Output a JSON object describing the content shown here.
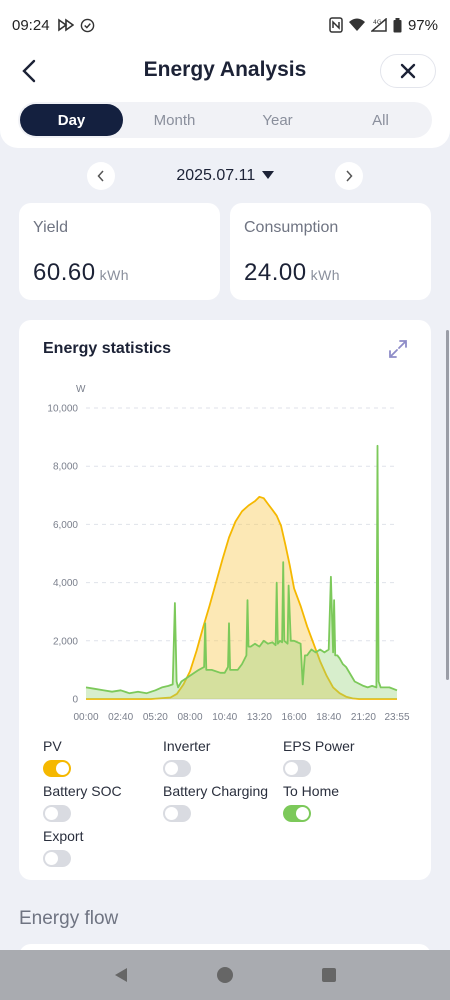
{
  "status_bar": {
    "time": "09:24",
    "battery": "97%",
    "net": "4G"
  },
  "header": {
    "title": "Energy Analysis"
  },
  "tabs": [
    {
      "label": "Day",
      "active": true
    },
    {
      "label": "Month",
      "active": false
    },
    {
      "label": "Year",
      "active": false
    },
    {
      "label": "All",
      "active": false
    }
  ],
  "date": {
    "value": "2025.07.11"
  },
  "yield": {
    "label": "Yield",
    "value": "60.60",
    "unit": "kWh"
  },
  "consumption": {
    "label": "Consumption",
    "value": "24.00",
    "unit": "kWh"
  },
  "chart_card": {
    "title": "Energy statistics"
  },
  "legend": [
    {
      "label": "PV",
      "on": true,
      "color": "#f5b800"
    },
    {
      "label": "Inverter",
      "on": false
    },
    {
      "label": "EPS Power",
      "on": false
    },
    {
      "label": "Battery SOC",
      "on": false
    },
    {
      "label": "Battery Charging",
      "on": false
    },
    {
      "label": "To Home",
      "on": true,
      "color": "#7cc95a"
    },
    {
      "label": "Export",
      "on": false
    }
  ],
  "section": {
    "energy_flow": "Energy flow"
  },
  "chart_data": {
    "type": "area",
    "title": "Energy statistics",
    "ylabel": "W",
    "xlabel": "",
    "ylim": [
      0,
      10000
    ],
    "yticks": [
      0,
      2000,
      4000,
      6000,
      8000,
      10000
    ],
    "ytick_labels": [
      "0",
      "2,000",
      "4,000",
      "6,000",
      "8,000",
      "10,000"
    ],
    "xlim": [
      0,
      1435
    ],
    "xticks": [
      0,
      160,
      320,
      480,
      640,
      800,
      960,
      1120,
      1280,
      1435
    ],
    "xtick_labels": [
      "00:00",
      "02:40",
      "05:20",
      "08:00",
      "10:40",
      "13:20",
      "16:00",
      "18:40",
      "21:20",
      "23:55"
    ],
    "grid": true,
    "series": [
      {
        "name": "PV",
        "color": "#f5b800",
        "x": [
          0,
          300,
          390,
          420,
          450,
          480,
          510,
          540,
          570,
          600,
          630,
          660,
          690,
          720,
          750,
          780,
          800,
          820,
          840,
          860,
          880,
          900,
          920,
          940,
          960,
          990,
          1020,
          1050,
          1080,
          1110,
          1140,
          1170,
          1200,
          1230,
          1260,
          1290,
          1320,
          1380,
          1435
        ],
        "y": [
          0,
          0,
          50,
          180,
          500,
          950,
          1650,
          2450,
          3200,
          4000,
          4800,
          5550,
          6100,
          6450,
          6650,
          6800,
          6950,
          6900,
          6700,
          6500,
          6300,
          5950,
          5300,
          4600,
          3800,
          3200,
          2500,
          1900,
          1300,
          800,
          400,
          200,
          80,
          20,
          0,
          0,
          0,
          0,
          0
        ]
      },
      {
        "name": "To Home",
        "color": "#7cc95a",
        "x": [
          0,
          40,
          80,
          120,
          160,
          200,
          240,
          280,
          320,
          350,
          380,
          400,
          410,
          418,
          425,
          440,
          460,
          500,
          520,
          545,
          550,
          555,
          580,
          620,
          640,
          655,
          660,
          665,
          700,
          720,
          740,
          745,
          750,
          760,
          780,
          790,
          800,
          820,
          840,
          860,
          875,
          880,
          885,
          895,
          905,
          910,
          915,
          930,
          935,
          945,
          960,
          990,
          1000,
          1010,
          1020,
          1030,
          1040,
          1060,
          1080,
          1100,
          1120,
          1130,
          1140,
          1145,
          1150,
          1160,
          1170,
          1185,
          1200,
          1240,
          1280,
          1300,
          1320,
          1340,
          1345,
          1350,
          1360,
          1400,
          1435
        ],
        "y": [
          400,
          350,
          300,
          250,
          300,
          200,
          250,
          200,
          300,
          400,
          450,
          500,
          3300,
          600,
          400,
          600,
          700,
          900,
          1000,
          1100,
          2600,
          1000,
          1000,
          900,
          900,
          1100,
          2600,
          1000,
          1000,
          1200,
          1500,
          3400,
          1800,
          1800,
          1900,
          1850,
          1800,
          2000,
          1900,
          1950,
          1850,
          4000,
          1900,
          2000,
          1950,
          4700,
          2000,
          1900,
          3900,
          2000,
          2000,
          1900,
          500,
          1500,
          1500,
          1600,
          1700,
          1600,
          1700,
          1600,
          1700,
          4200,
          1600,
          3400,
          1500,
          1500,
          1400,
          1200,
          1100,
          600,
          450,
          400,
          450,
          400,
          8700,
          600,
          400,
          400,
          300
        ]
      }
    ]
  }
}
